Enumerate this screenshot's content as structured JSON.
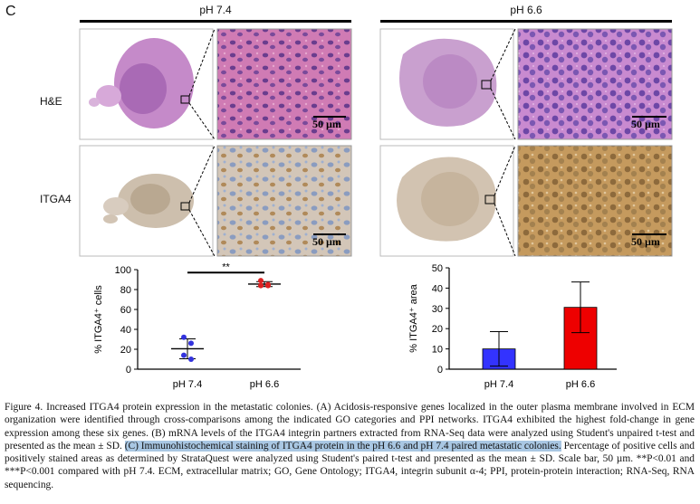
{
  "figure": {
    "panel_letter": "C",
    "groups": [
      {
        "label": "pH 7.4"
      },
      {
        "label": "pH 6.6"
      }
    ],
    "rows": [
      {
        "label": "H&E"
      },
      {
        "label": "ITGA4"
      }
    ],
    "scale_bar_label": "50 µm",
    "colors": {
      "he_tissue": "#c58ac9",
      "he_zoom": "#c46aa8",
      "ihc_tissue": "#cdbfad",
      "ihc_zoom": "#c9b394",
      "bar_blue": "#3333ff",
      "bar_red": "#ee0000"
    }
  },
  "chart_data": [
    {
      "type": "scatter",
      "title": "",
      "ylabel": "% ITGA4⁺ cells",
      "ylim": [
        0,
        100
      ],
      "yticks": [
        0,
        20,
        40,
        60,
        80,
        100
      ],
      "categories": [
        "pH 7.4",
        "pH 6.6"
      ],
      "series": [
        {
          "category": "pH 7.4",
          "color": "#3333dd",
          "points": [
            32,
            26,
            14,
            10
          ],
          "mean": 20.5,
          "sd": 10
        },
        {
          "category": "pH 6.6",
          "color": "#dd2222",
          "points": [
            89,
            84,
            84,
            85
          ],
          "mean": 85.5,
          "sd": 2.5
        }
      ],
      "significance": "**"
    },
    {
      "type": "bar",
      "title": "",
      "ylabel": "% ITGA4⁺ area",
      "ylim": [
        0,
        50
      ],
      "yticks": [
        0,
        10,
        20,
        30,
        40,
        50
      ],
      "categories": [
        "pH 7.4",
        "pH 6.6"
      ],
      "values": [
        10,
        30.5
      ],
      "errors": [
        8.5,
        12.5
      ],
      "colors": [
        "#3333ff",
        "#ee0000"
      ]
    }
  ],
  "caption": {
    "part1": "Figure 4. Increased ITGA4 protein expression in the metastatic colonies. (A) Acidosis-responsive genes localized in the outer plasma membrane involved in ECM organization were identified through cross-comparisons among the indicated GO categories and PPI networks. ITGA4 exhibited the highest fold-change in gene expression among these six genes. (B) mRNA levels of the ITGA4 integrin partners extracted from RNA-Seq data were analyzed using Student's unpaired t-test and presented as the mean ± SD.",
    "highlight": "(C) Immunohistochemical staining of ITGA4 protein in the pH 6.6 and pH 7.4 paired metastatic colonies.",
    "part2": "Percentage of positive cells and positively stained areas as determined by StrataQuest were analyzed using Student's paired t-test and presented as the mean ± SD. Scale bar, 50 µm. **P<0.01 and ***P<0.001 compared with pH 7.4. ECM, extracellular matrix; GO, Gene Ontology; ITGA4, integrin subunit α-4; PPI, protein-protein interaction; RNA-Seq, RNA sequencing."
  }
}
